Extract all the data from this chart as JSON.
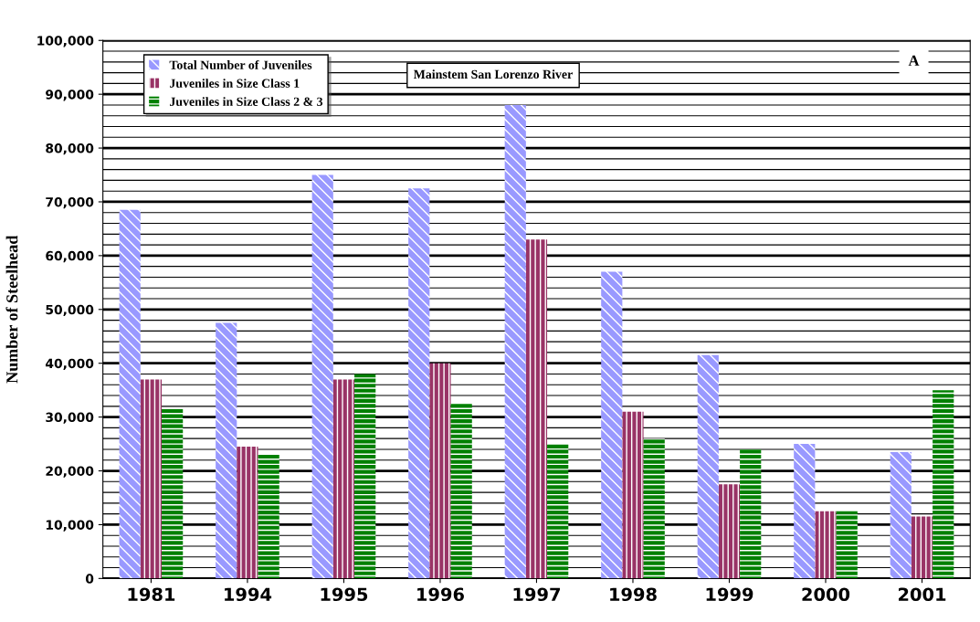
{
  "chart_data": {
    "type": "bar",
    "ylabel": "Number of Steelhead",
    "categories": [
      "1981",
      "1994",
      "1995",
      "1996",
      "1997",
      "1998",
      "1999",
      "2000",
      "2001"
    ],
    "series": [
      {
        "name": "Total Number of Juveniles",
        "color": "#9999ff",
        "values": [
          68500,
          47500,
          75000,
          72500,
          88000,
          57000,
          41500,
          25000,
          23500
        ]
      },
      {
        "name": "Juveniles in Size Class 1",
        "color": "#993366",
        "values": [
          37000,
          24500,
          37000,
          40000,
          63000,
          31000,
          17500,
          12500,
          11500
        ]
      },
      {
        "name": "Juveniles in Size Class 2 & 3",
        "color": "#008000",
        "values": [
          31500,
          23000,
          38000,
          32500,
          25000,
          26000,
          24000,
          12500,
          35000
        ]
      }
    ],
    "ylim": [
      0,
      100000
    ],
    "yticks": [
      {
        "value": 0,
        "label": "0"
      },
      {
        "value": 10000,
        "label": "10,000"
      },
      {
        "value": 20000,
        "label": "20,000"
      },
      {
        "value": 30000,
        "label": "30,000"
      },
      {
        "value": 40000,
        "label": "40,000"
      },
      {
        "value": 50000,
        "label": "50,000"
      },
      {
        "value": 60000,
        "label": "60,000"
      },
      {
        "value": 70000,
        "label": "70,000"
      },
      {
        "value": 80000,
        "label": "80,000"
      },
      {
        "value": 90000,
        "label": "90,000"
      },
      {
        "value": 100000,
        "label": "100,000"
      }
    ],
    "grid": "y",
    "legend": "top left",
    "annotations": [
      "Mainstem San Lorenzo River",
      "A"
    ]
  }
}
